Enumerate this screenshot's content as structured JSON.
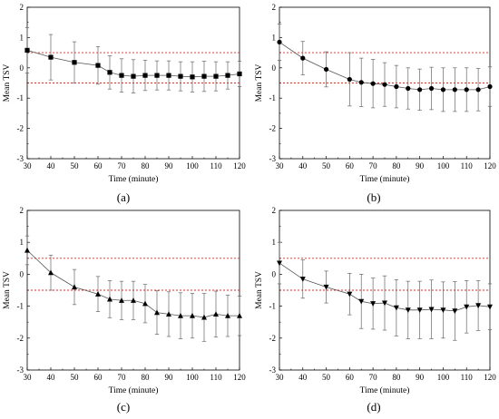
{
  "chart_data": [
    {
      "type": "line",
      "panel_label": "(a)",
      "marker": "square",
      "xlabel": "Time (minute)",
      "ylabel": "Mean TSV",
      "xlim": [
        30,
        120
      ],
      "ylim": [
        -3,
        2
      ],
      "xticks": [
        30,
        40,
        50,
        60,
        70,
        80,
        90,
        100,
        110,
        120
      ],
      "yticks": [
        -3,
        -2,
        -1,
        0,
        1,
        2
      ],
      "reference_lines": [
        0.5,
        -0.5
      ],
      "reference_color": "#e8261f",
      "x": [
        30,
        40,
        50,
        60,
        65,
        70,
        75,
        80,
        85,
        90,
        95,
        100,
        105,
        110,
        115,
        120
      ],
      "y": [
        0.58,
        0.35,
        0.18,
        0.08,
        -0.15,
        -0.25,
        -0.28,
        -0.25,
        -0.25,
        -0.25,
        -0.28,
        -0.3,
        -0.28,
        -0.28,
        -0.25,
        -0.2
      ],
      "err": [
        0.75,
        0.75,
        0.68,
        0.62,
        0.55,
        0.55,
        0.55,
        0.5,
        0.48,
        0.48,
        0.48,
        0.5,
        0.5,
        0.48,
        0.45,
        0.42
      ]
    },
    {
      "type": "line",
      "panel_label": "(b)",
      "marker": "circle",
      "xlabel": "Time (minute)",
      "ylabel": "Mean TSV",
      "xlim": [
        30,
        120
      ],
      "ylim": [
        -3,
        2
      ],
      "xticks": [
        30,
        40,
        50,
        60,
        70,
        80,
        90,
        100,
        110,
        120
      ],
      "yticks": [
        -3,
        -2,
        -1,
        0,
        1,
        2
      ],
      "reference_lines": [
        0.5,
        -0.5
      ],
      "reference_color": "#e8261f",
      "x": [
        30,
        40,
        50,
        60,
        65,
        70,
        75,
        80,
        85,
        90,
        95,
        100,
        105,
        110,
        115,
        120
      ],
      "y": [
        0.85,
        0.32,
        -0.05,
        -0.38,
        -0.48,
        -0.52,
        -0.55,
        -0.62,
        -0.68,
        -0.72,
        -0.68,
        -0.72,
        -0.72,
        -0.72,
        -0.72,
        -0.62
      ],
      "err": [
        0.6,
        0.55,
        0.58,
        0.88,
        0.8,
        0.8,
        0.72,
        0.7,
        0.68,
        0.68,
        0.7,
        0.72,
        0.72,
        0.72,
        0.7,
        0.65
      ]
    },
    {
      "type": "line",
      "panel_label": "(c)",
      "marker": "triangle-up",
      "xlabel": "Time (minute)",
      "ylabel": "Mean TSV",
      "xlim": [
        30,
        120
      ],
      "ylim": [
        -3,
        2
      ],
      "xticks": [
        30,
        40,
        50,
        60,
        70,
        80,
        90,
        100,
        110,
        120
      ],
      "yticks": [
        -3,
        -2,
        -1,
        0,
        1,
        2
      ],
      "reference_lines": [
        0.5,
        -0.5
      ],
      "reference_color": "#e8261f",
      "x": [
        30,
        40,
        50,
        60,
        65,
        70,
        75,
        80,
        85,
        90,
        95,
        100,
        105,
        110,
        115,
        120
      ],
      "y": [
        0.75,
        0.05,
        -0.4,
        -0.62,
        -0.78,
        -0.82,
        -0.82,
        -0.92,
        -1.2,
        -1.25,
        -1.3,
        -1.3,
        -1.35,
        -1.25,
        -1.3,
        -1.3
      ],
      "err": [
        0.45,
        0.55,
        0.55,
        0.55,
        0.58,
        0.6,
        0.6,
        0.6,
        0.68,
        0.7,
        0.72,
        0.7,
        0.75,
        0.72,
        0.65,
        0.62
      ]
    },
    {
      "type": "line",
      "panel_label": "(d)",
      "marker": "triangle-down",
      "xlabel": "Time (minute)",
      "ylabel": "Mean TSV",
      "xlim": [
        30,
        120
      ],
      "ylim": [
        -3,
        2
      ],
      "xticks": [
        30,
        40,
        50,
        60,
        70,
        80,
        90,
        100,
        110,
        120
      ],
      "yticks": [
        -3,
        -2,
        -1,
        0,
        1,
        2
      ],
      "reference_lines": [
        0.5,
        -0.5
      ],
      "reference_color": "#e8261f",
      "x": [
        30,
        40,
        50,
        60,
        65,
        70,
        75,
        80,
        85,
        90,
        95,
        100,
        105,
        110,
        115,
        120
      ],
      "y": [
        0.35,
        -0.15,
        -0.4,
        -0.62,
        -0.85,
        -0.92,
        -0.9,
        -1.05,
        -1.12,
        -1.12,
        -1.1,
        -1.12,
        -1.15,
        -1.02,
        -0.98,
        -1.02
      ],
      "err": [
        0.65,
        0.6,
        0.5,
        0.65,
        0.85,
        0.8,
        0.85,
        0.88,
        0.9,
        0.9,
        0.92,
        0.88,
        0.92,
        0.82,
        0.78,
        0.72
      ]
    }
  ]
}
